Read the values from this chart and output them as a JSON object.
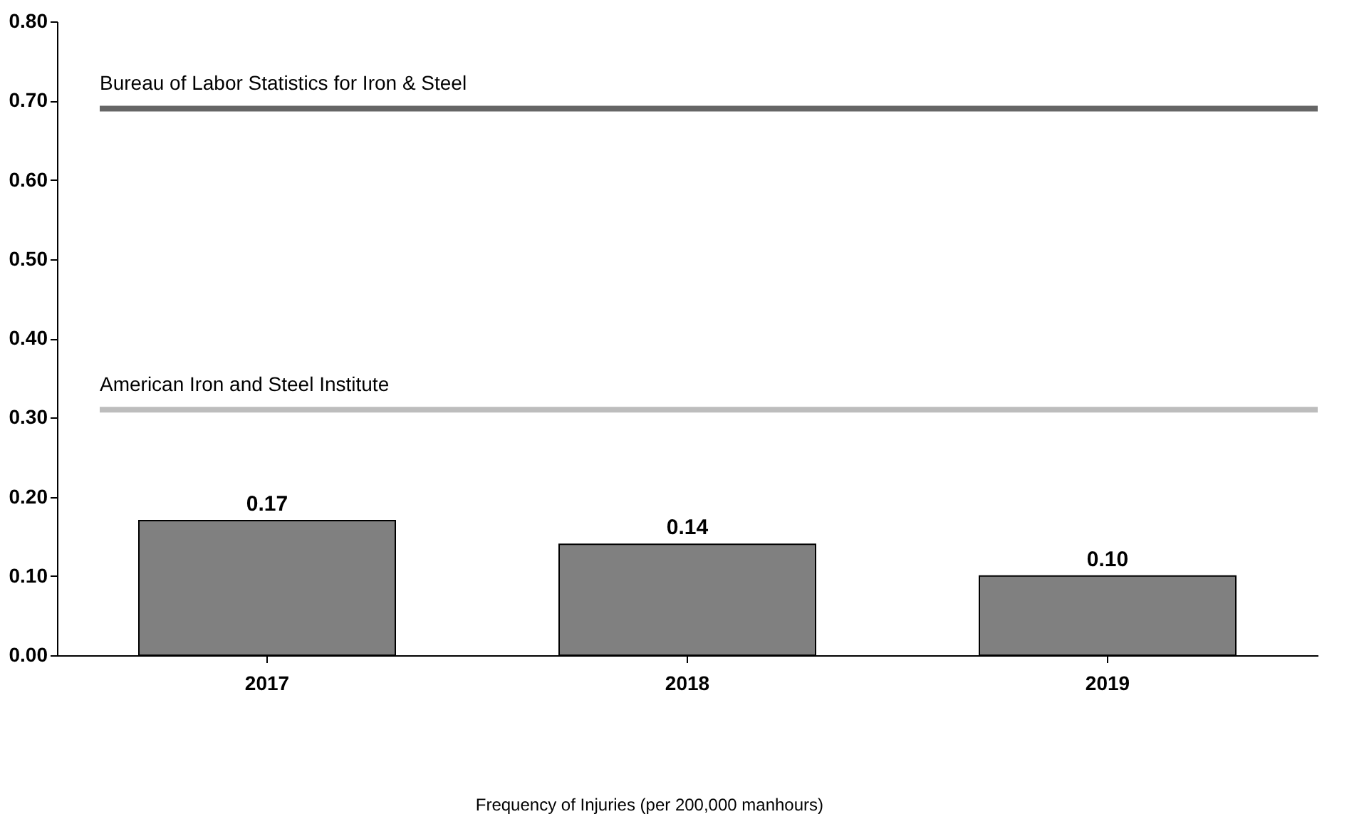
{
  "chart_data": {
    "type": "bar",
    "annotations": [
      "Frequency of Injuries (per 200,000 manhours)"
    ],
    "categories": [
      "2017",
      "2018",
      "2019"
    ],
    "values": [
      0.17,
      0.14,
      0.1
    ],
    "color": "#808080",
    "value_labels": [
      "0.17",
      "0.14",
      "0.10"
    ],
    "ylim": [
      0,
      0.8
    ],
    "yticks": [
      {
        "value": 0,
        "label": "0.00"
      },
      {
        "value": 0.1,
        "label": "0.10"
      },
      {
        "value": 0.2,
        "label": "0.20"
      },
      {
        "value": 0.3,
        "label": "0.30"
      },
      {
        "value": 0.4,
        "label": "0.40"
      },
      {
        "value": 0.5,
        "label": "0.50"
      },
      {
        "value": 0.6,
        "label": "0.60"
      },
      {
        "value": 0.7,
        "label": "0.70"
      },
      {
        "value": 0.8,
        "label": "0.80"
      }
    ],
    "ref_lines": [
      {
        "axis": "y",
        "value": 0.69,
        "label": "Bureau of Labor Statistics for Iron & Steel",
        "color": "#666666"
      },
      {
        "axis": "y",
        "value": 0.31,
        "label": "American Iron and Steel Institute",
        "color": "#bdbdbd"
      }
    ],
    "grid": false
  }
}
